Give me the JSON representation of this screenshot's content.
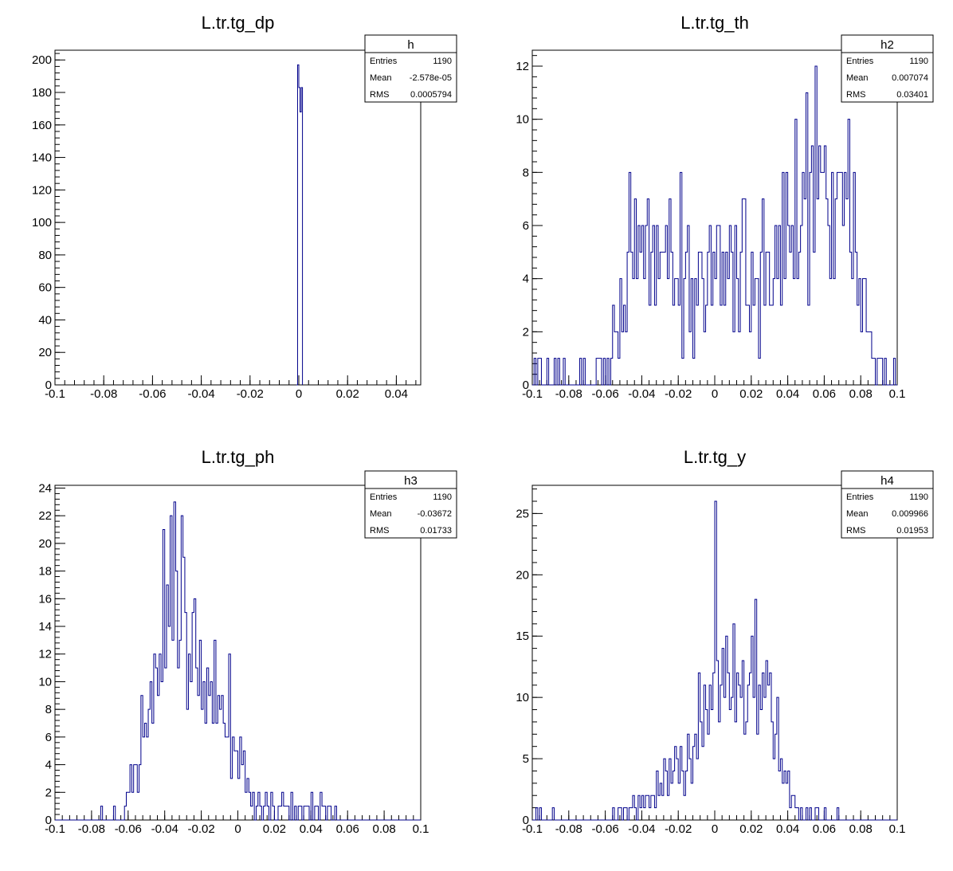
{
  "canvas": {
    "background": "#ffffff",
    "line_color": "#00008b"
  },
  "chart_data": [
    {
      "type": "bar",
      "histogram": true,
      "title": "L.tr.tg_dp",
      "xlim": [
        -0.1,
        0.05
      ],
      "ylim": [
        0,
        206
      ],
      "xticks": [
        -0.1,
        -0.08,
        -0.06,
        -0.04,
        -0.02,
        0,
        0.02,
        0.04
      ],
      "xtick_labels": [
        "-0.1",
        "-0.08",
        "-0.06",
        "-0.04",
        "-0.02",
        "0",
        "0.02",
        "0.04"
      ],
      "yticks": [
        0,
        20,
        40,
        60,
        80,
        100,
        120,
        140,
        160,
        180,
        200
      ],
      "ytick_labels": [
        "0",
        "20",
        "40",
        "60",
        "80",
        "100",
        "120",
        "140",
        "160",
        "180",
        "200"
      ],
      "bins": {
        "x": [
          -0.001,
          -0.0005,
          0.0,
          0.0005,
          0.001
        ],
        "width": 0.0005
      },
      "values": [
        0,
        197,
        183,
        168,
        183
      ],
      "stats": {
        "name": "h",
        "entries_label": "Entries",
        "entries": "1190",
        "mean_label": "Mean",
        "mean": "-2.578e-05",
        "rms_label": "RMS",
        "rms": "0.0005794"
      }
    },
    {
      "type": "bar",
      "histogram": true,
      "title": "L.tr.tg_th",
      "xlim": [
        -0.1,
        0.1
      ],
      "ylim": [
        0,
        12.6
      ],
      "xticks": [
        -0.1,
        -0.08,
        -0.06,
        -0.04,
        -0.02,
        0,
        0.02,
        0.04,
        0.06,
        0.08,
        0.1
      ],
      "xtick_labels": [
        "-0.1",
        "-0.08",
        "-0.06",
        "-0.04",
        "-0.02",
        "0",
        "0.02",
        "0.04",
        "0.06",
        "0.08",
        "0.1"
      ],
      "yticks": [
        0,
        2,
        4,
        6,
        8,
        10,
        12
      ],
      "ytick_labels": [
        "0",
        "2",
        "4",
        "6",
        "8",
        "10",
        "12"
      ],
      "bins": {
        "x0": -0.1,
        "width": 0.001,
        "count": 200
      },
      "values": [
        0,
        1,
        0,
        1,
        1,
        0,
        0,
        0,
        1,
        0,
        0,
        0,
        1,
        0,
        1,
        0,
        0,
        1,
        0,
        0,
        0,
        0,
        0,
        0,
        0,
        0,
        1,
        0,
        1,
        0,
        0,
        0,
        0,
        0,
        0,
        1,
        1,
        1,
        0,
        1,
        0,
        1,
        0,
        1,
        3,
        2,
        2,
        1,
        4,
        2,
        3,
        2,
        5,
        8,
        5,
        4,
        7,
        4,
        6,
        5,
        6,
        4,
        6,
        7,
        3,
        5,
        6,
        3,
        6,
        4,
        5,
        5,
        5,
        6,
        4,
        7,
        5,
        3,
        4,
        4,
        3,
        8,
        1,
        4,
        5,
        6,
        2,
        4,
        1,
        4,
        3,
        5,
        5,
        4,
        2,
        3,
        5,
        6,
        3,
        5,
        4,
        6,
        6,
        3,
        5,
        3,
        5,
        4,
        6,
        5,
        2,
        6,
        4,
        2,
        5,
        7,
        7,
        3,
        3,
        2,
        5,
        3,
        4,
        4,
        1,
        5,
        7,
        3,
        5,
        5,
        3,
        3,
        4,
        6,
        4,
        6,
        3,
        8,
        4,
        8,
        6,
        5,
        6,
        4,
        10,
        4,
        5,
        6,
        8,
        7,
        11,
        3,
        8,
        9,
        5,
        12,
        7,
        9,
        8,
        8,
        9,
        7,
        6,
        4,
        8,
        4,
        7,
        8,
        8,
        8,
        6,
        8,
        7,
        10,
        5,
        4,
        8,
        5,
        3,
        4,
        2,
        4,
        4,
        2,
        2,
        2,
        1,
        1,
        0,
        1,
        1,
        1,
        0,
        1,
        0,
        0,
        0,
        0,
        1,
        0
      ],
      "stats": {
        "name": "h2",
        "entries_label": "Entries",
        "entries": "1190",
        "mean_label": "Mean",
        "mean": "0.007074",
        "rms_label": "RMS",
        "rms": "0.03401"
      }
    },
    {
      "type": "bar",
      "histogram": true,
      "title": "L.tr.tg_ph",
      "xlim": [
        -0.1,
        0.1
      ],
      "ylim": [
        0,
        24.2
      ],
      "xticks": [
        -0.1,
        -0.08,
        -0.06,
        -0.04,
        -0.02,
        0,
        0.02,
        0.04,
        0.06,
        0.08,
        0.1
      ],
      "xtick_labels": [
        "-0.1",
        "-0.08",
        "-0.06",
        "-0.04",
        "-0.02",
        "0",
        "0.02",
        "0.04",
        "0.06",
        "0.08",
        "0.1"
      ],
      "yticks": [
        0,
        2,
        4,
        6,
        8,
        10,
        12,
        14,
        16,
        18,
        20,
        22,
        24
      ],
      "ytick_labels": [
        "0",
        "2",
        "4",
        "6",
        "8",
        "10",
        "12",
        "14",
        "16",
        "18",
        "20",
        "22",
        "24"
      ],
      "bins": {
        "x0": -0.1,
        "width": 0.001,
        "count": 200
      },
      "values": [
        0,
        0,
        0,
        0,
        0,
        0,
        0,
        0,
        0,
        0,
        0,
        0,
        0,
        0,
        0,
        0,
        0,
        0,
        0,
        0,
        0,
        0,
        0,
        0,
        0,
        1,
        0,
        0,
        0,
        0,
        0,
        0,
        1,
        0,
        0,
        0,
        0,
        0,
        1,
        2,
        2,
        4,
        2,
        4,
        4,
        2,
        4,
        9,
        6,
        7,
        6,
        8,
        10,
        7,
        12,
        11,
        9,
        12,
        10,
        21,
        11,
        17,
        14,
        22,
        13,
        23,
        18,
        11,
        13,
        22,
        19,
        15,
        8,
        12,
        10,
        15,
        16,
        11,
        9,
        13,
        8,
        10,
        7,
        11,
        9,
        10,
        7,
        13,
        7,
        9,
        8,
        9,
        7,
        6,
        6,
        12,
        3,
        6,
        5,
        5,
        3,
        6,
        4,
        5,
        2,
        3,
        2,
        1,
        2,
        0,
        1,
        2,
        1,
        0,
        1,
        2,
        1,
        0,
        2,
        1,
        0,
        0,
        1,
        1,
        2,
        1,
        1,
        1,
        0,
        2,
        0,
        1,
        0,
        1,
        1,
        0,
        1,
        1,
        1,
        0,
        2,
        0,
        1,
        1,
        0,
        2,
        1,
        1,
        0,
        1,
        1,
        0,
        0,
        1,
        0,
        0,
        0,
        0,
        0,
        0,
        0,
        0,
        0,
        0,
        0,
        0,
        0,
        0,
        0,
        0,
        0,
        0,
        0,
        0,
        0,
        0,
        0,
        0,
        0,
        0,
        0,
        0,
        0,
        0,
        0,
        0,
        0,
        0,
        0,
        0,
        0,
        0,
        0,
        0,
        0,
        0,
        0,
        0,
        0,
        0
      ],
      "stats": {
        "name": "h3",
        "entries_label": "Entries",
        "entries": "1190",
        "mean_label": "Mean",
        "mean": "-0.03672",
        "rms_label": "RMS",
        "rms": "0.01733"
      }
    },
    {
      "type": "bar",
      "histogram": true,
      "title": "L.tr.tg_y",
      "xlim": [
        -0.1,
        0.1
      ],
      "ylim": [
        0,
        27.3
      ],
      "xticks": [
        -0.1,
        -0.08,
        -0.06,
        -0.04,
        -0.02,
        0,
        0.02,
        0.04,
        0.06,
        0.08,
        0.1
      ],
      "xtick_labels": [
        "-0.1",
        "-0.08",
        "-0.06",
        "-0.04",
        "-0.02",
        "0",
        "0.02",
        "0.04",
        "0.06",
        "0.08",
        "0.1"
      ],
      "yticks": [
        0,
        5,
        10,
        15,
        20,
        25
      ],
      "ytick_labels": [
        "0",
        "5",
        "10",
        "15",
        "20",
        "25"
      ],
      "bins": {
        "x0": -0.1,
        "width": 0.001,
        "count": 200
      },
      "values": [
        0,
        0,
        1,
        0,
        1,
        0,
        0,
        0,
        0,
        0,
        0,
        1,
        0,
        0,
        0,
        0,
        0,
        0,
        0,
        0,
        0,
        0,
        0,
        0,
        0,
        0,
        0,
        0,
        0,
        0,
        0,
        0,
        0,
        0,
        0,
        0,
        0,
        0,
        0,
        0,
        0,
        0,
        0,
        0,
        1,
        0,
        0,
        1,
        1,
        0,
        1,
        1,
        0,
        1,
        1,
        2,
        1,
        0,
        2,
        1,
        2,
        1,
        2,
        2,
        1,
        2,
        2,
        1,
        4,
        2,
        3,
        2,
        5,
        4,
        2,
        5,
        3,
        4,
        6,
        5,
        3,
        6,
        4,
        2,
        4,
        7,
        5,
        3,
        6,
        7,
        5,
        12,
        8,
        6,
        11,
        9,
        7,
        11,
        9,
        12,
        26,
        13,
        8,
        11,
        14,
        10,
        15,
        12,
        9,
        10,
        16,
        8,
        12,
        11,
        10,
        13,
        7,
        8,
        11,
        12,
        15,
        10,
        18,
        7,
        11,
        9,
        12,
        10,
        13,
        11,
        12,
        8,
        5,
        7,
        10,
        4,
        5,
        3,
        4,
        3,
        4,
        1,
        2,
        2,
        1,
        1,
        0,
        1,
        0,
        0,
        1,
        0,
        1,
        0,
        0,
        1,
        1,
        0,
        0,
        0,
        1,
        0,
        0,
        0,
        0,
        0,
        0,
        1,
        0,
        0,
        0,
        0,
        0,
        0,
        0,
        0,
        0,
        0,
        0,
        0,
        0,
        0,
        0,
        0,
        0,
        0,
        0,
        0,
        0,
        0,
        0,
        0,
        0,
        0,
        0,
        0,
        0,
        0,
        0,
        0
      ],
      "stats": {
        "name": "h4",
        "entries_label": "Entries",
        "entries": "1190",
        "mean_label": "Mean",
        "mean": "0.009966",
        "rms_label": "RMS",
        "rms": "0.01953"
      }
    }
  ]
}
